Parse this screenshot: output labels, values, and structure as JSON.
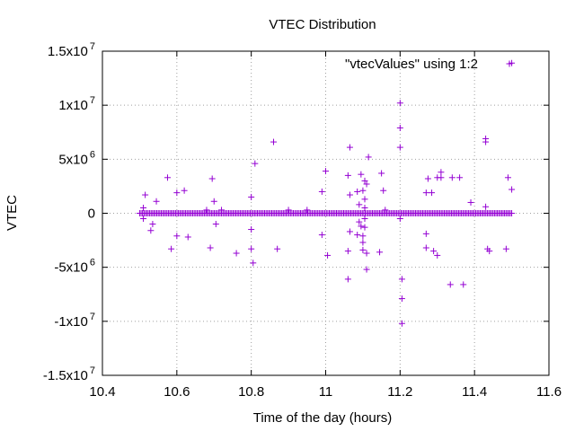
{
  "chart_data": {
    "type": "scatter",
    "title": "VTEC Distribution",
    "xlabel": "Time of the day (hours)",
    "ylabel": "VTEC",
    "xlim": [
      10.4,
      11.6
    ],
    "ylim": [
      -15000000,
      15000000
    ],
    "grid": true,
    "legend_position": "top-right",
    "marker": "plus",
    "colors": {
      "series": "#9400d3",
      "axes": "#000000",
      "grid": "#a0a0a0"
    },
    "x_ticks": [
      {
        "value": 10.4,
        "label": "10.4"
      },
      {
        "value": 10.6,
        "label": "10.6"
      },
      {
        "value": 10.8,
        "label": "10.8"
      },
      {
        "value": 11.0,
        "label": "11"
      },
      {
        "value": 11.2,
        "label": "11.2"
      },
      {
        "value": 11.4,
        "label": "11.4"
      },
      {
        "value": 11.6,
        "label": "11.6"
      }
    ],
    "y_ticks": [
      {
        "value": 15000000,
        "mantissa": "1.5x10",
        "exponent": "7"
      },
      {
        "value": 10000000,
        "mantissa": "1x10",
        "exponent": "7"
      },
      {
        "value": 5000000,
        "mantissa": "5x10",
        "exponent": "6"
      },
      {
        "value": 0,
        "mantissa": "0",
        "exponent": ""
      },
      {
        "value": -5000000,
        "mantissa": "-5x10",
        "exponent": "6"
      },
      {
        "value": -10000000,
        "mantissa": "-1x10",
        "exponent": "7"
      },
      {
        "value": -15000000,
        "mantissa": "-1.5x10",
        "exponent": "7"
      }
    ],
    "series": [
      {
        "name": "\"vtecValues\" using 1:2",
        "baseline": {
          "x_start": 10.5,
          "x_end": 11.5,
          "count": 260,
          "y": 0
        },
        "points": [
          {
            "x": 10.51,
            "y": 500000
          },
          {
            "x": 10.51,
            "y": -500000
          },
          {
            "x": 10.515,
            "y": 1700000
          },
          {
            "x": 10.53,
            "y": -1600000
          },
          {
            "x": 10.535,
            "y": -1000000
          },
          {
            "x": 10.545,
            "y": 1100000
          },
          {
            "x": 10.575,
            "y": 3300000
          },
          {
            "x": 10.585,
            "y": -3300000
          },
          {
            "x": 10.6,
            "y": 1900000
          },
          {
            "x": 10.6,
            "y": -2100000
          },
          {
            "x": 10.62,
            "y": 2100000
          },
          {
            "x": 10.63,
            "y": -2200000
          },
          {
            "x": 10.68,
            "y": 300000
          },
          {
            "x": 10.69,
            "y": -3200000
          },
          {
            "x": 10.695,
            "y": 3200000
          },
          {
            "x": 10.7,
            "y": 1100000
          },
          {
            "x": 10.705,
            "y": -1000000
          },
          {
            "x": 10.72,
            "y": 300000
          },
          {
            "x": 10.76,
            "y": -3700000
          },
          {
            "x": 10.8,
            "y": 1500000
          },
          {
            "x": 10.8,
            "y": -1500000
          },
          {
            "x": 10.8,
            "y": -3300000
          },
          {
            "x": 10.805,
            "y": -4600000
          },
          {
            "x": 10.81,
            "y": 4600000
          },
          {
            "x": 10.86,
            "y": 6600000
          },
          {
            "x": 10.87,
            "y": -3300000
          },
          {
            "x": 10.9,
            "y": 300000
          },
          {
            "x": 10.95,
            "y": 300000
          },
          {
            "x": 10.99,
            "y": 2000000
          },
          {
            "x": 10.99,
            "y": -2000000
          },
          {
            "x": 11.0,
            "y": 3900000
          },
          {
            "x": 11.005,
            "y": -3900000
          },
          {
            "x": 11.06,
            "y": 3500000
          },
          {
            "x": 11.06,
            "y": -3500000
          },
          {
            "x": 11.06,
            "y": -6100000
          },
          {
            "x": 11.065,
            "y": 6100000
          },
          {
            "x": 11.065,
            "y": 1700000
          },
          {
            "x": 11.065,
            "y": -1700000
          },
          {
            "x": 11.085,
            "y": 2000000
          },
          {
            "x": 11.085,
            "y": -2000000
          },
          {
            "x": 11.09,
            "y": 800000
          },
          {
            "x": 11.09,
            "y": -800000
          },
          {
            "x": 11.095,
            "y": 3600000
          },
          {
            "x": 11.095,
            "y": -1200000
          },
          {
            "x": 11.1,
            "y": 2100000
          },
          {
            "x": 11.1,
            "y": -2100000
          },
          {
            "x": 11.1,
            "y": -2700000
          },
          {
            "x": 11.1,
            "y": -3400000
          },
          {
            "x": 11.105,
            "y": 3000000
          },
          {
            "x": 11.105,
            "y": 1300000
          },
          {
            "x": 11.105,
            "y": -1300000
          },
          {
            "x": 11.105,
            "y": 500000
          },
          {
            "x": 11.105,
            "y": -500000
          },
          {
            "x": 11.11,
            "y": 2700000
          },
          {
            "x": 11.11,
            "y": -3700000
          },
          {
            "x": 11.11,
            "y": -5200000
          },
          {
            "x": 11.115,
            "y": 5200000
          },
          {
            "x": 11.145,
            "y": -3600000
          },
          {
            "x": 11.15,
            "y": 3700000
          },
          {
            "x": 11.155,
            "y": 2100000
          },
          {
            "x": 11.16,
            "y": 300000
          },
          {
            "x": 11.2,
            "y": 10200000
          },
          {
            "x": 11.2,
            "y": 7900000
          },
          {
            "x": 11.2,
            "y": 6100000
          },
          {
            "x": 11.2,
            "y": -500000
          },
          {
            "x": 11.205,
            "y": -6100000
          },
          {
            "x": 11.205,
            "y": -7900000
          },
          {
            "x": 11.205,
            "y": -10200000
          },
          {
            "x": 11.27,
            "y": 1900000
          },
          {
            "x": 11.27,
            "y": -1900000
          },
          {
            "x": 11.27,
            "y": -3200000
          },
          {
            "x": 11.275,
            "y": 3200000
          },
          {
            "x": 11.285,
            "y": 1900000
          },
          {
            "x": 11.29,
            "y": -3500000
          },
          {
            "x": 11.3,
            "y": 3300000
          },
          {
            "x": 11.3,
            "y": -3900000
          },
          {
            "x": 11.31,
            "y": 3800000
          },
          {
            "x": 11.31,
            "y": 3300000
          },
          {
            "x": 11.335,
            "y": -6600000
          },
          {
            "x": 11.34,
            "y": 3300000
          },
          {
            "x": 11.36,
            "y": 3300000
          },
          {
            "x": 11.37,
            "y": -6600000
          },
          {
            "x": 11.39,
            "y": 1000000
          },
          {
            "x": 11.43,
            "y": 6900000
          },
          {
            "x": 11.43,
            "y": 6600000
          },
          {
            "x": 11.43,
            "y": 600000
          },
          {
            "x": 11.435,
            "y": -3300000
          },
          {
            "x": 11.44,
            "y": -3500000
          },
          {
            "x": 11.485,
            "y": -3300000
          },
          {
            "x": 11.49,
            "y": 3300000
          },
          {
            "x": 11.5,
            "y": 2200000
          },
          {
            "x": 11.5,
            "y": 13900000
          }
        ]
      }
    ]
  }
}
